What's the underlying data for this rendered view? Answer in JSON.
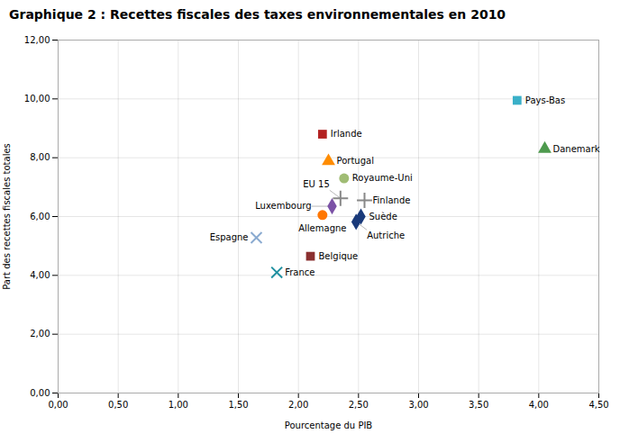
{
  "chart_data": {
    "type": "scatter",
    "title": "Graphique 2 : Recettes fiscales des taxes environnementales en 2010",
    "xlabel": "Pourcentage du PIB",
    "ylabel": "Part des recettes fiscales totales",
    "xlim": [
      0,
      4.5
    ],
    "ylim": [
      0,
      12
    ],
    "xticks": [
      {
        "value": 0.0,
        "label": "0,00"
      },
      {
        "value": 0.5,
        "label": "0,50"
      },
      {
        "value": 1.0,
        "label": "1,00"
      },
      {
        "value": 1.5,
        "label": "1,50"
      },
      {
        "value": 2.0,
        "label": "2,00"
      },
      {
        "value": 2.5,
        "label": "2,50"
      },
      {
        "value": 3.0,
        "label": "3,00"
      },
      {
        "value": 3.5,
        "label": "3,50"
      },
      {
        "value": 4.0,
        "label": "4,00"
      },
      {
        "value": 4.5,
        "label": "4,50"
      }
    ],
    "yticks": [
      {
        "value": 0.0,
        "label": "0,00"
      },
      {
        "value": 2.0,
        "label": "2,00"
      },
      {
        "value": 4.0,
        "label": "4,00"
      },
      {
        "value": 6.0,
        "label": "6,00"
      },
      {
        "value": 8.0,
        "label": "8,00"
      },
      {
        "value": 10.0,
        "label": "10,00"
      },
      {
        "value": 12.0,
        "label": "12,00"
      }
    ],
    "grid": true,
    "series": [
      {
        "name": "Pays-Bas",
        "x": [
          3.82
        ],
        "values": [
          9.95
        ],
        "marker": "square",
        "color": "#3ab0c8"
      },
      {
        "name": "Danemark",
        "x": [
          4.05
        ],
        "values": [
          8.3
        ],
        "marker": "triangle",
        "color": "#4e9a4e"
      },
      {
        "name": "Irlande",
        "x": [
          2.2
        ],
        "values": [
          8.8
        ],
        "marker": "square",
        "color": "#b22222"
      },
      {
        "name": "Portugal",
        "x": [
          2.25
        ],
        "values": [
          7.88
        ],
        "marker": "triangle",
        "color": "#ff8c00"
      },
      {
        "name": "Royaume-Uni",
        "x": [
          2.38
        ],
        "values": [
          7.3
        ],
        "marker": "circle",
        "color": "#a0bc74"
      },
      {
        "name": "Finlande",
        "x": [
          2.55
        ],
        "values": [
          6.55
        ],
        "marker": "plus",
        "color": "#888888"
      },
      {
        "name": "EU 15",
        "x": [
          2.35
        ],
        "values": [
          6.62
        ],
        "marker": "plus",
        "color": "#888888"
      },
      {
        "name": "Luxembourg",
        "x": [
          2.28
        ],
        "values": [
          6.35
        ],
        "marker": "diamond",
        "color": "#7b52a6"
      },
      {
        "name": "Allemagne",
        "x": [
          2.2
        ],
        "values": [
          6.05
        ],
        "marker": "circle",
        "color": "#ff7700"
      },
      {
        "name": "Suède",
        "x": [
          2.52
        ],
        "values": [
          6.0
        ],
        "marker": "diamond",
        "color": "#1a3a7a"
      },
      {
        "name": "Autriche",
        "x": [
          2.48
        ],
        "values": [
          5.82
        ],
        "marker": "diamond",
        "color": "#1a3a7a"
      },
      {
        "name": "Espagne",
        "x": [
          1.65
        ],
        "values": [
          5.28
        ],
        "marker": "x",
        "color": "#8aaad0"
      },
      {
        "name": "Belgique",
        "x": [
          2.1
        ],
        "values": [
          4.65
        ],
        "marker": "square",
        "color": "#8b3030"
      },
      {
        "name": "France",
        "x": [
          1.82
        ],
        "values": [
          4.1
        ],
        "marker": "x",
        "color": "#2090a0"
      }
    ]
  }
}
